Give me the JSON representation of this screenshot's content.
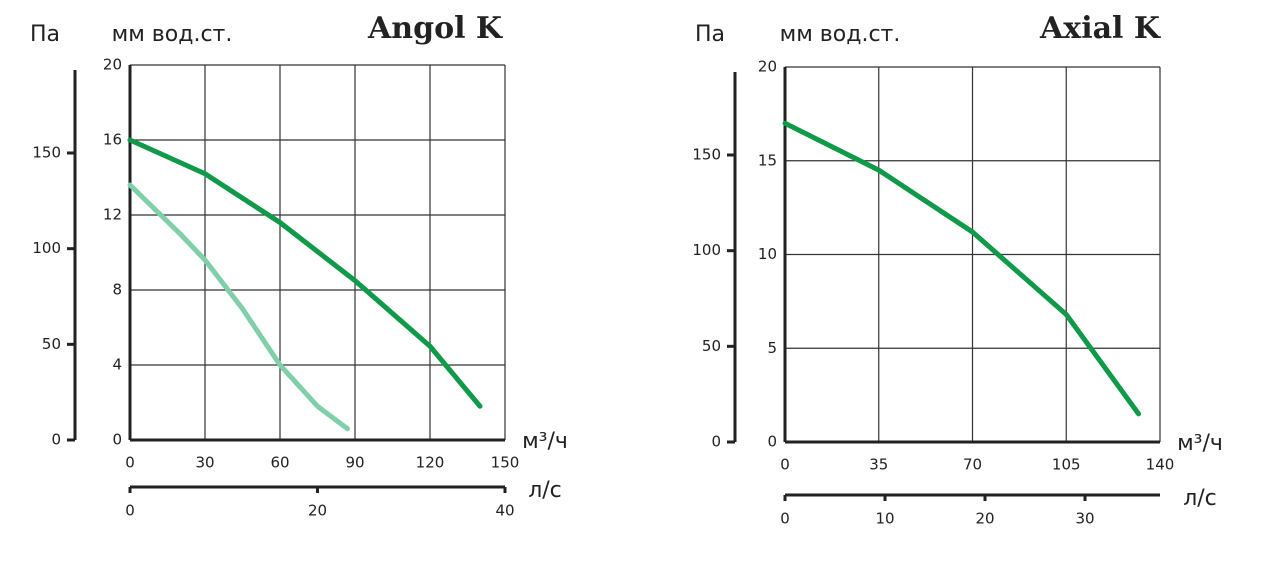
{
  "chart_data": [
    {
      "type": "line",
      "title": "Angol K",
      "ylabel": "мм вод.ст.",
      "y2label": "Па",
      "xlabel": "м³/ч",
      "x2label": "л/с",
      "xlim": [
        0,
        150
      ],
      "xticks": [
        0,
        30,
        60,
        90,
        120,
        150
      ],
      "x2lim": [
        0,
        40
      ],
      "x2ticks": [
        0,
        20,
        40
      ],
      "ylim": [
        0,
        20
      ],
      "yticks": [
        0,
        4,
        8,
        12,
        16,
        20
      ],
      "y2lim": [
        0,
        196
      ],
      "y2ticks": [
        0,
        50,
        100,
        150
      ],
      "grid": true,
      "series": [
        {
          "color": "#0f9a4a",
          "x": [
            0,
            30,
            60,
            90,
            120,
            140
          ],
          "values": [
            16,
            14.2,
            11.6,
            8.5,
            5,
            1.8
          ]
        },
        {
          "color": "#7fcfaa",
          "x": [
            0,
            20,
            30,
            45,
            60,
            75,
            87
          ],
          "values": [
            13.6,
            11,
            9.6,
            7,
            4,
            1.8,
            0.6
          ]
        }
      ]
    },
    {
      "type": "line",
      "title": "Axial K",
      "ylabel": "мм вод.ст.",
      "y2label": "Па",
      "xlabel": "м³/ч",
      "x2label": "л/с",
      "xlim": [
        0,
        140
      ],
      "xticks": [
        0,
        35,
        70,
        105,
        140
      ],
      "x2lim": [
        0,
        37.5
      ],
      "x2ticks": [
        0,
        10,
        20,
        30
      ],
      "ylim": [
        0,
        20
      ],
      "yticks": [
        0,
        5,
        10,
        15,
        20
      ],
      "y2lim": [
        0,
        196
      ],
      "y2ticks": [
        0,
        50,
        100,
        150
      ],
      "grid": true,
      "series": [
        {
          "color": "#0f9a4a",
          "x": [
            0,
            35,
            70,
            105,
            132
          ],
          "values": [
            17,
            14.5,
            11.2,
            6.8,
            1.5
          ]
        }
      ]
    }
  ]
}
